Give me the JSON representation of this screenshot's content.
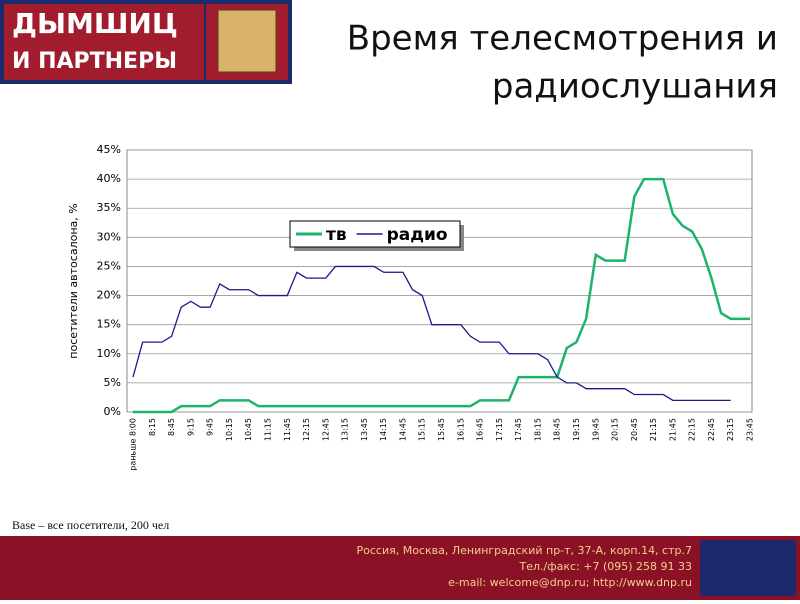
{
  "header": {
    "logo": [
      "ДЫМШИЦ",
      "И ПАРТНЕРЫ"
    ],
    "title": [
      "Время телесмотрения и",
      "радиослушания"
    ]
  },
  "chart_data": {
    "type": "line",
    "y_label": "посетители автосалона, %",
    "categories": [
      "раньше 8:00",
      null,
      "8:15",
      null,
      "8:45",
      null,
      "9:15",
      null,
      "9:45",
      null,
      "10:15",
      null,
      "10:45",
      null,
      "11:15",
      null,
      "11:45",
      null,
      "12:15",
      null,
      "12:45",
      null,
      "13:15",
      null,
      "13:45",
      null,
      "14:15",
      null,
      "14:45",
      null,
      "15:15",
      null,
      "15:45",
      null,
      "16:15",
      null,
      "16:45",
      null,
      "17:15",
      null,
      "17:45",
      null,
      "18:15",
      null,
      "18:45",
      null,
      "19:15",
      null,
      "19:45",
      null,
      "20:15",
      null,
      "20:45",
      null,
      "21:15",
      null,
      "21:45",
      null,
      "22:15",
      null,
      "22:45",
      null,
      "23:15",
      null,
      "23:45"
    ],
    "series": [
      {
        "name": "тв",
        "color": "#1db36b",
        "values": [
          0,
          0,
          0,
          0,
          0,
          1,
          1,
          1,
          1,
          2,
          2,
          2,
          2,
          1,
          1,
          1,
          1,
          1,
          1,
          1,
          1,
          1,
          1,
          1,
          1,
          1,
          1,
          1,
          1,
          1,
          1,
          1,
          1,
          1,
          1,
          1,
          2,
          2,
          2,
          2,
          6,
          6,
          6,
          6,
          6,
          11,
          12,
          16,
          27,
          26,
          26,
          26,
          37,
          40,
          40,
          40,
          34,
          32,
          31,
          28,
          23,
          17,
          16,
          16,
          16
        ]
      },
      {
        "name": "радио",
        "color": "#1a1a8c",
        "values": [
          6,
          12,
          12,
          12,
          13,
          18,
          19,
          18,
          18,
          22,
          21,
          21,
          21,
          20,
          20,
          20,
          20,
          24,
          23,
          23,
          23,
          25,
          25,
          25,
          25,
          25,
          24,
          24,
          24,
          21,
          20,
          15,
          15,
          15,
          15,
          13,
          12,
          12,
          12,
          10,
          10,
          10,
          10,
          9,
          6,
          5,
          5,
          4,
          4,
          4,
          4,
          4,
          3,
          3,
          3,
          3,
          2,
          2,
          2,
          2,
          2,
          2,
          2,
          null,
          null
        ]
      }
    ],
    "ylim": [
      0,
      45
    ],
    "yticks": [
      {
        "value": 0,
        "label": "0%"
      },
      {
        "value": 5,
        "label": "5%"
      },
      {
        "value": 10,
        "label": "10%"
      },
      {
        "value": 15,
        "label": "15%"
      },
      {
        "value": 20,
        "label": "20%"
      },
      {
        "value": 25,
        "label": "25%"
      },
      {
        "value": 30,
        "label": "30%"
      },
      {
        "value": 35,
        "label": "35%"
      },
      {
        "value": 40,
        "label": "40%"
      },
      {
        "value": 45,
        "label": "45%"
      }
    ],
    "grid": true,
    "legend": "top"
  },
  "note": "Base – все посетители, 200 чел",
  "footer": {
    "lines": [
      "Россия, Москва, Ленинградский пр-т, 37-А, корп.14, стр.7",
      "Тел./факс: +7 (095) 258 91 33",
      "e-mail: welcome@dnp.ru; http://www.dnp.ru"
    ]
  }
}
